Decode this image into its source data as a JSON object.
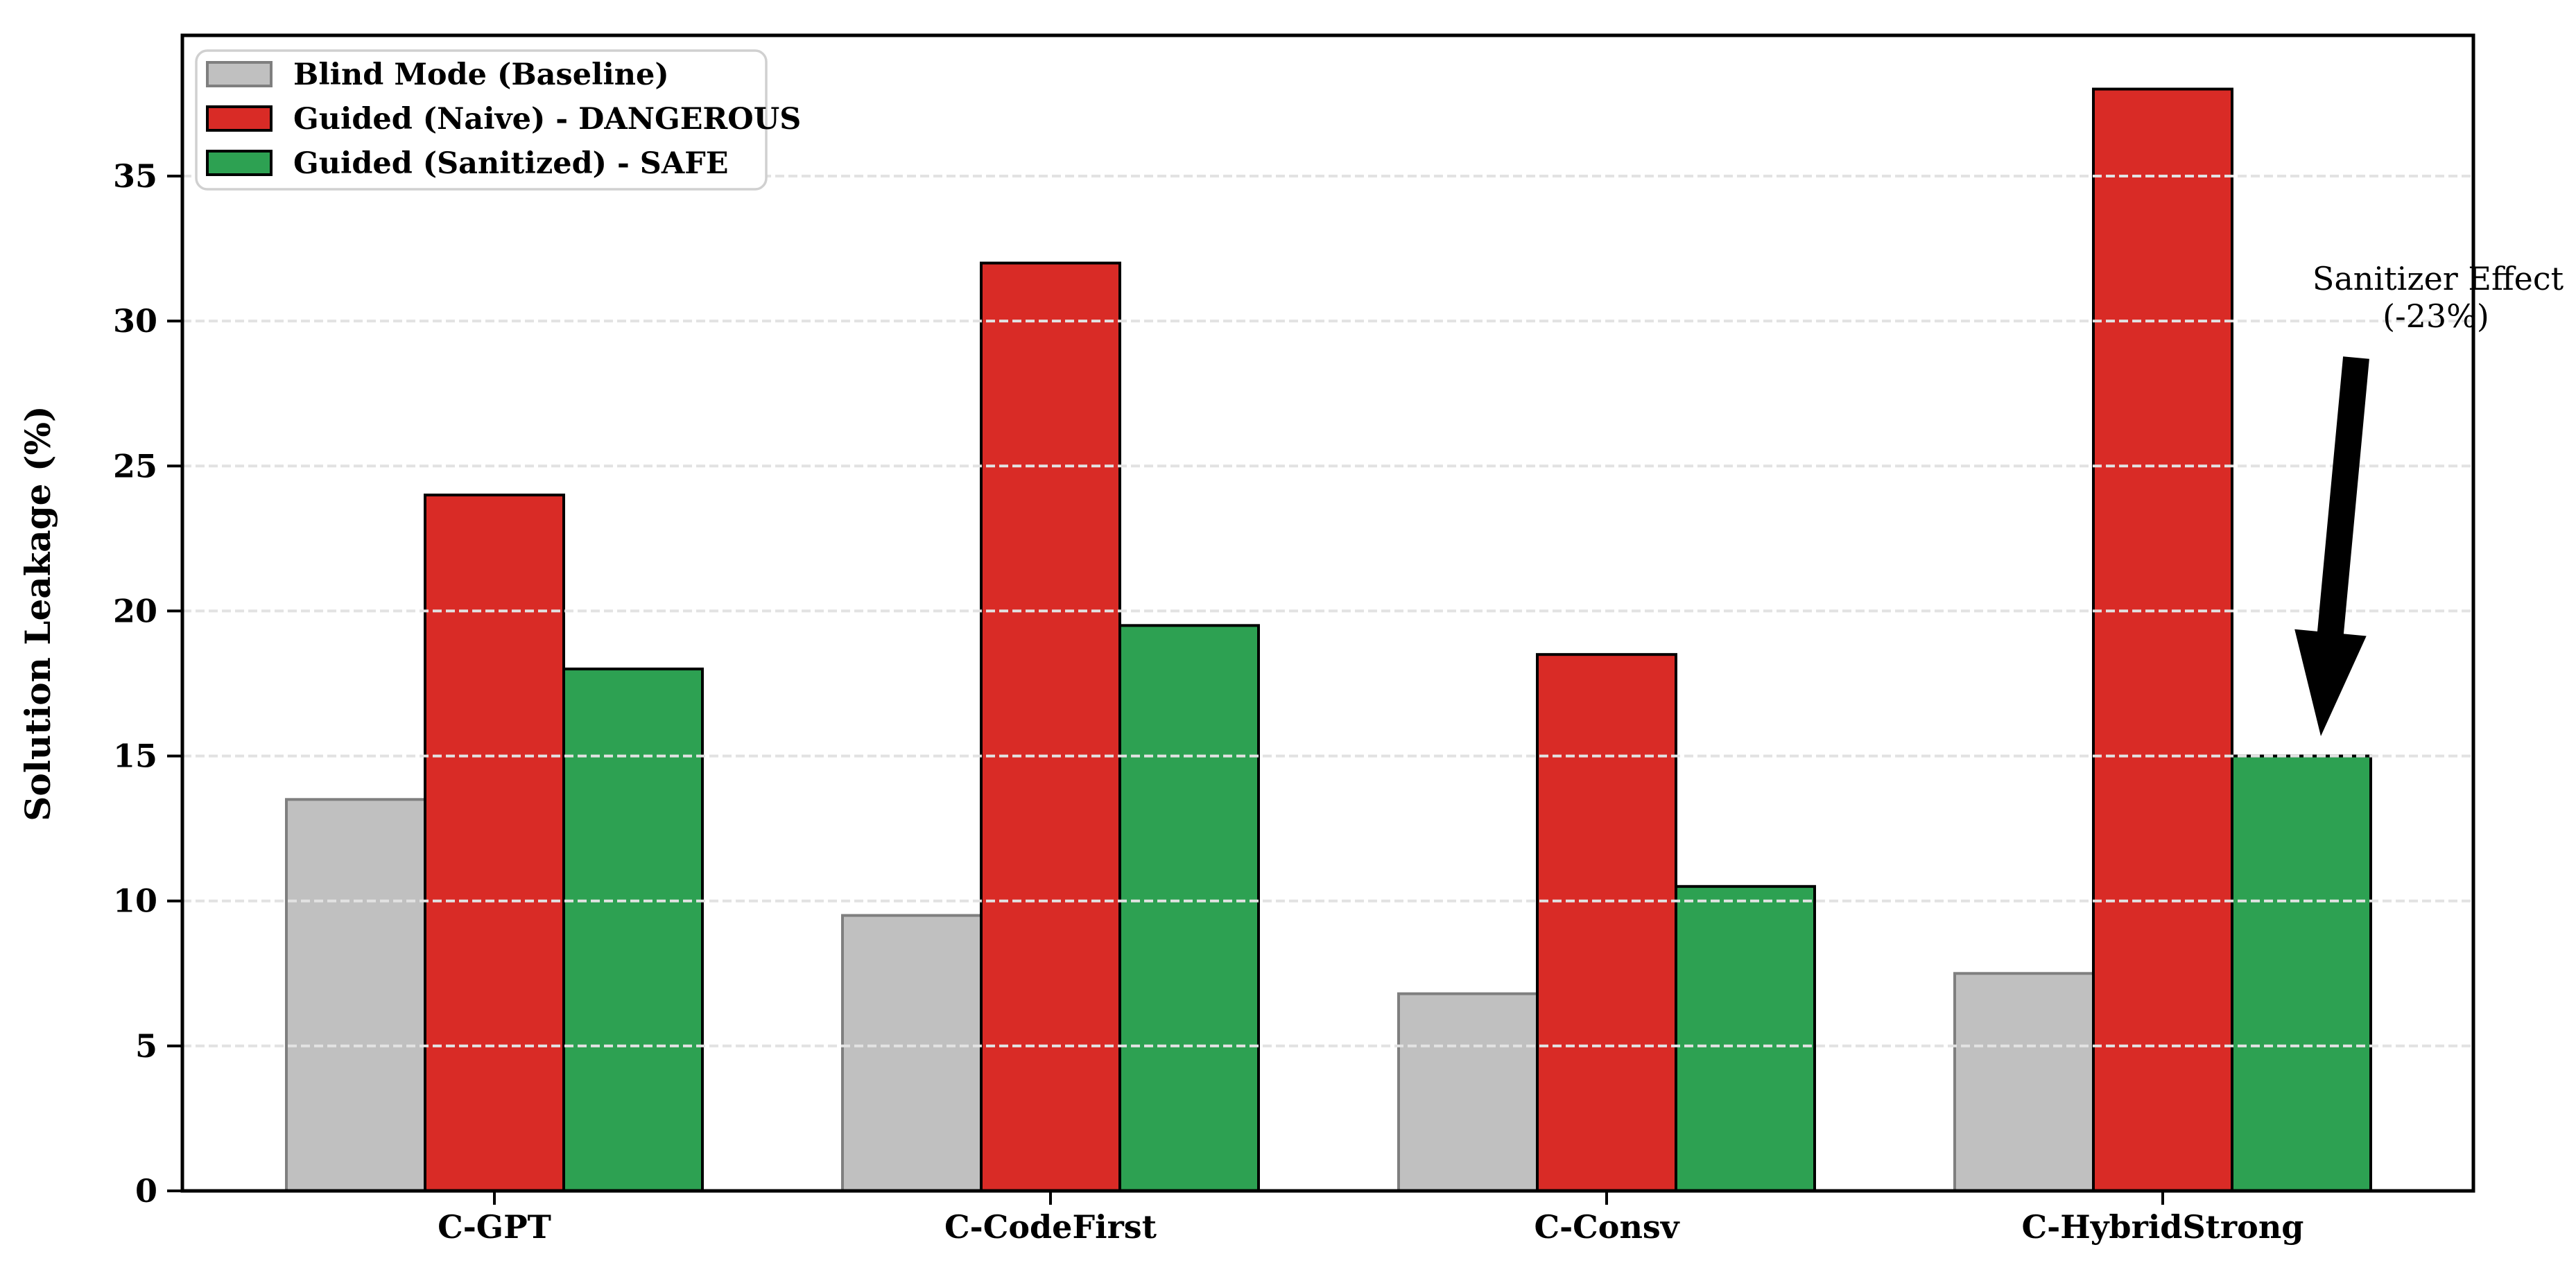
{
  "chart_data": {
    "type": "bar",
    "title": "",
    "xlabel": "",
    "ylabel": "Solution Leakage (%)",
    "categories": [
      "C-GPT",
      "C-CodeFirst",
      "C-Consv",
      "C-HybridStrong"
    ],
    "series": [
      {
        "name": "Blind Mode (Baseline)",
        "values": [
          13.5,
          9.5,
          6.8,
          7.5
        ],
        "fill": "#c0c0c0",
        "edge": "#7f7f7f"
      },
      {
        "name": "Guided (Naive) - DANGEROUS",
        "values": [
          24.0,
          32.0,
          18.5,
          38.0
        ],
        "fill": "#d92b26",
        "edge": "#000000"
      },
      {
        "name": "Guided (Sanitized) - SAFE",
        "values": [
          18.0,
          19.5,
          10.5,
          15.0
        ],
        "fill": "#2da152",
        "edge": "#000000"
      }
    ],
    "yticks": [
      0,
      5,
      10,
      15,
      20,
      25,
      30,
      35
    ],
    "ylim": [
      0,
      39.9
    ],
    "grid": {
      "visible": true,
      "style": "dashed",
      "color": "#e2e2e2",
      "over_bars": true
    },
    "legend": {
      "position": "upper-left",
      "entries": [
        "Blind Mode (Baseline)",
        "Guided (Naive) - DANGEROUS",
        "Guided (Sanitized) - SAFE"
      ]
    },
    "annotation": {
      "line1": "Sanitizer Effect",
      "line2": "(-23%)",
      "arrow": "points-to-sanitized-bar-of-C-HybridStrong",
      "color": "#000000"
    },
    "colors": {
      "background": "#ffffff",
      "spine": "#000000",
      "legend_border": "#d0d0d0",
      "text": "#000000"
    }
  }
}
